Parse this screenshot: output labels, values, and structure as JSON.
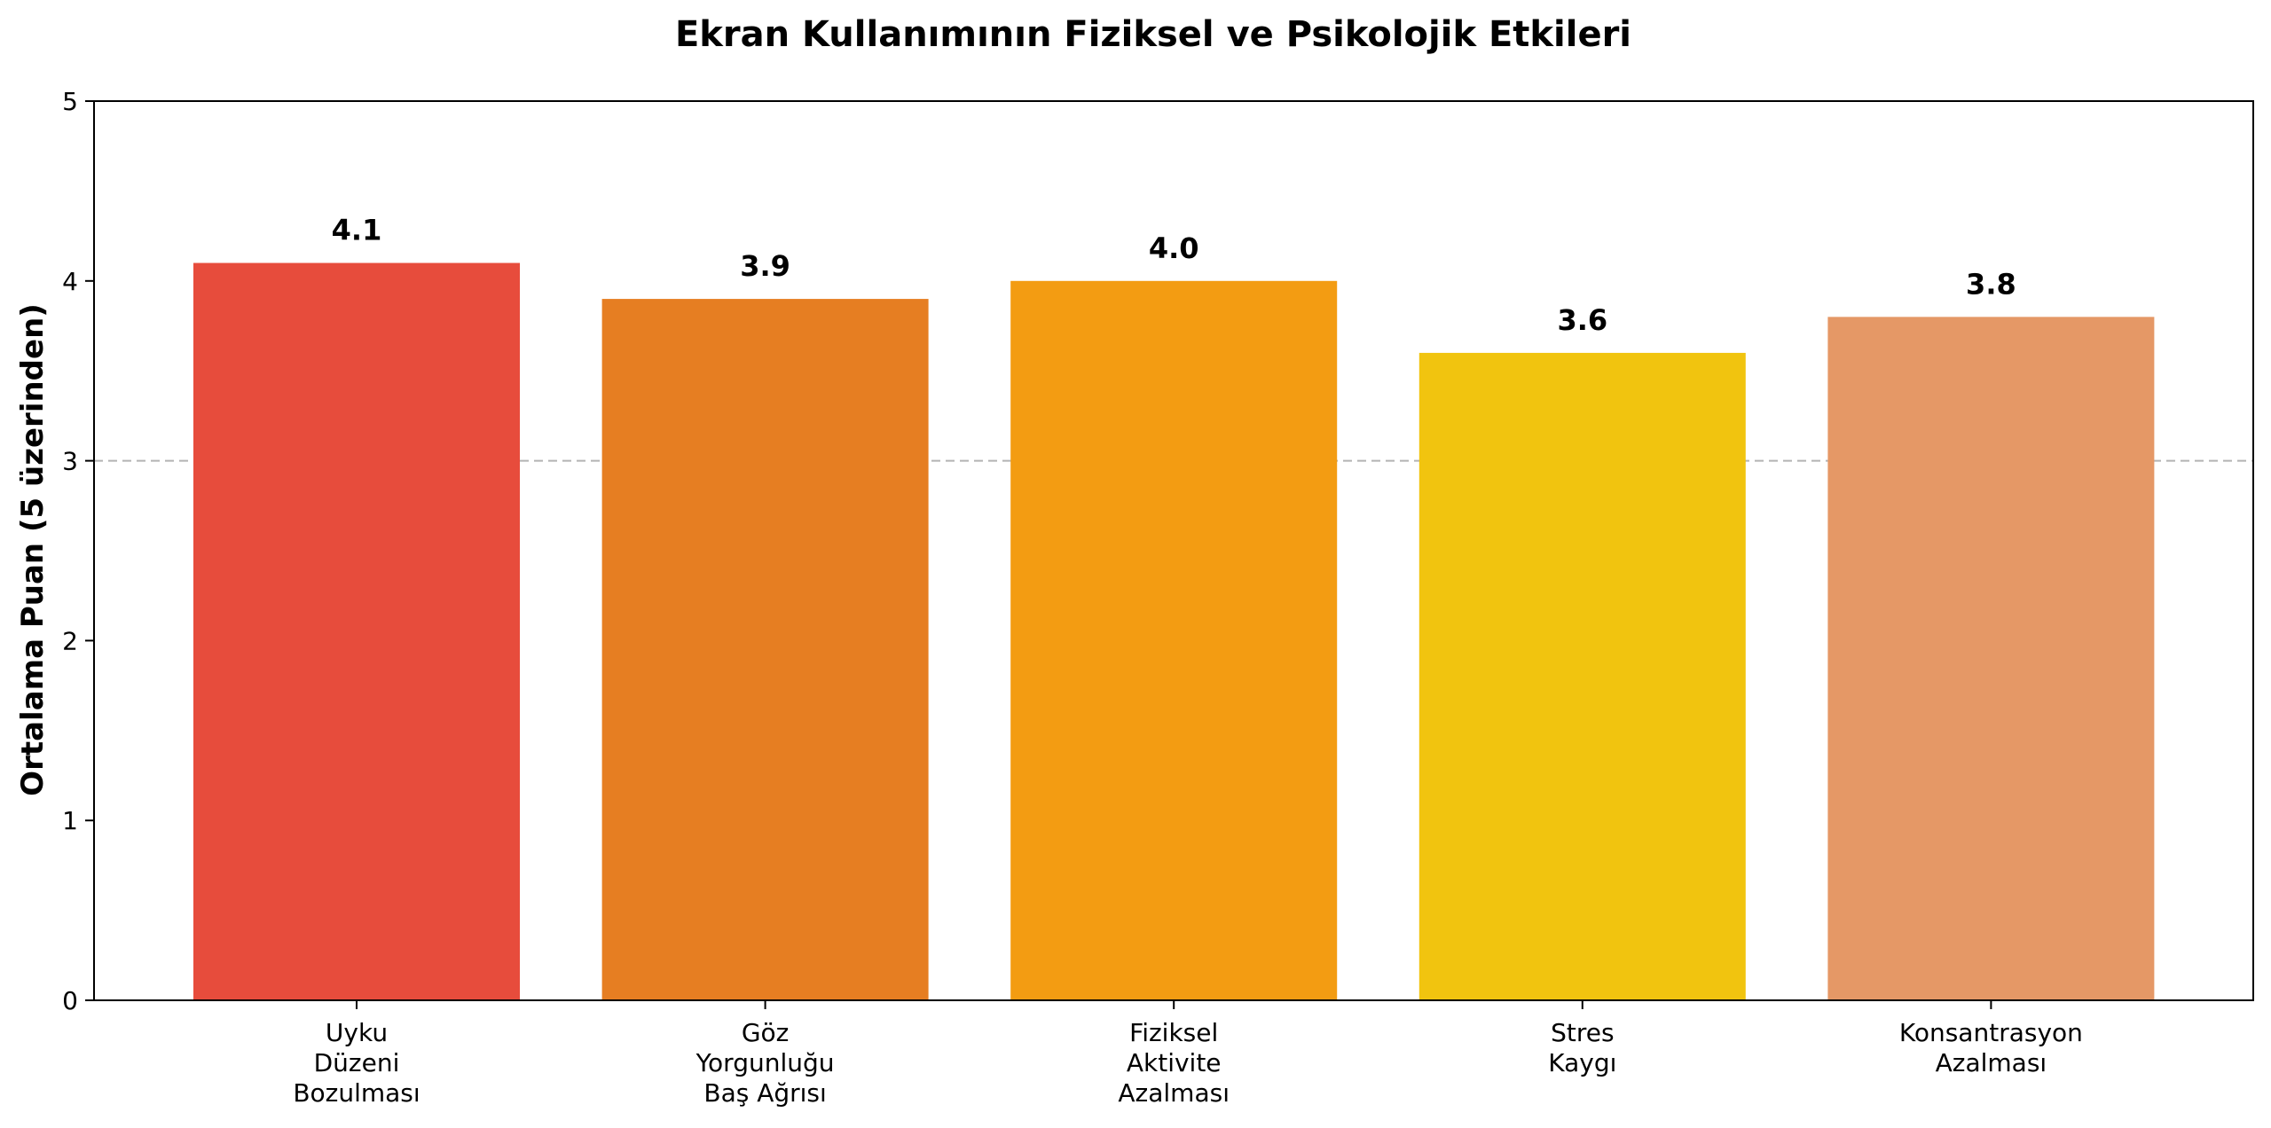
{
  "chart_data": {
    "type": "bar",
    "title": "Ekran Kullanımının Fiziksel ve Psikolojik Etkileri",
    "ylabel": "Ortalama Puan (5 üzerinden)",
    "xlabel": "",
    "ylim": [
      0,
      5
    ],
    "yticks": [
      "0",
      "1",
      "2",
      "3",
      "4",
      "5"
    ],
    "reference_line": {
      "y": 3,
      "style": "dashed",
      "color": "#b3b3b3"
    },
    "grid": false,
    "categories": [
      "Uyku\nDüzeni\nBozulması",
      "Göz\nYorgunluğu\nBaş Ağrısı",
      "Fiziksel\nAktivite\nAzalması",
      "Stres\nKaygı",
      "Konsantrasyon\nAzalması"
    ],
    "values": [
      4.1,
      3.9,
      4.0,
      3.6,
      3.8
    ],
    "value_labels": [
      "4.1",
      "3.9",
      "4.0",
      "3.6",
      "3.8"
    ],
    "colors": [
      "#e74c3c",
      "#e67e22",
      "#f39c12",
      "#f1c40f",
      "#e59866"
    ]
  }
}
